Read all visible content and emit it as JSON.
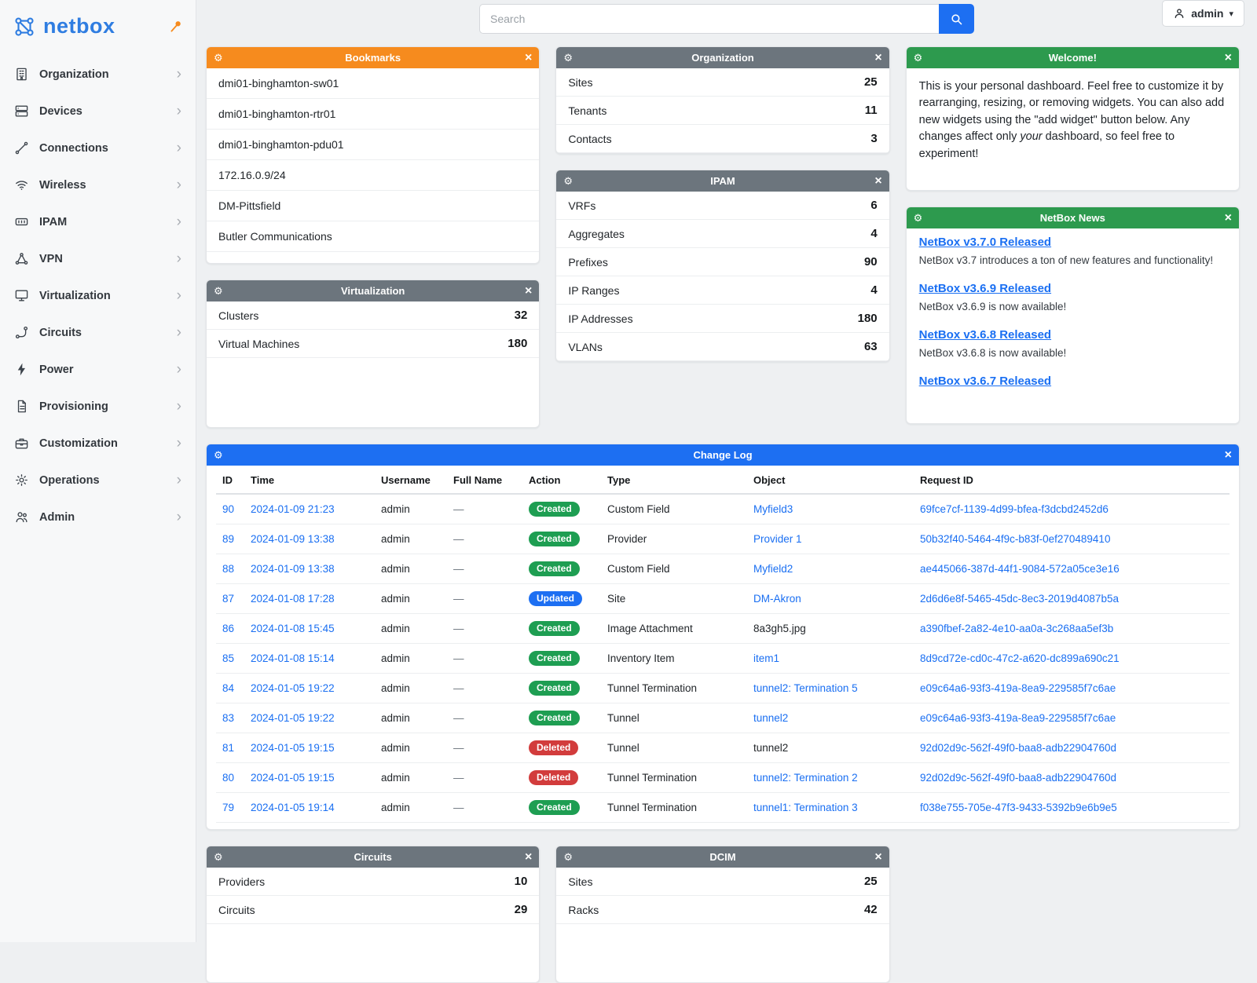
{
  "brand": {
    "name": "netbox"
  },
  "topbar": {
    "search_placeholder": "Search",
    "user": "admin"
  },
  "colors": {
    "link": "#1a6ff2",
    "header_orange": "#f68b1e",
    "header_gray": "#6c757d",
    "header_green": "#2d9a4e",
    "header_blue": "#1d6ff2",
    "badge_created": "#1e9e52",
    "badge_updated": "#1d6ff2",
    "badge_deleted": "#d23c3c"
  },
  "sidebar": {
    "items": [
      {
        "label": "Organization",
        "icon": "building-icon"
      },
      {
        "label": "Devices",
        "icon": "devices-icon"
      },
      {
        "label": "Connections",
        "icon": "connections-icon"
      },
      {
        "label": "Wireless",
        "icon": "wifi-icon"
      },
      {
        "label": "IPAM",
        "icon": "ipam-icon"
      },
      {
        "label": "VPN",
        "icon": "vpn-icon"
      },
      {
        "label": "Virtualization",
        "icon": "virtualization-icon"
      },
      {
        "label": "Circuits",
        "icon": "circuits-icon"
      },
      {
        "label": "Power",
        "icon": "power-icon"
      },
      {
        "label": "Provisioning",
        "icon": "provisioning-icon"
      },
      {
        "label": "Customization",
        "icon": "customization-icon"
      },
      {
        "label": "Operations",
        "icon": "operations-icon"
      },
      {
        "label": "Admin",
        "icon": "admin-icon"
      }
    ]
  },
  "widgets": {
    "bookmarks": {
      "title": "Bookmarks",
      "header_color": "#f68b1e",
      "items": [
        "dmi01-binghamton-sw01",
        "dmi01-binghamton-rtr01",
        "dmi01-binghamton-pdu01",
        "172.16.0.9/24",
        "DM-Pittsfield",
        "Butler Communications"
      ]
    },
    "organization": {
      "title": "Organization",
      "header_color": "#6c757d",
      "stats": [
        {
          "label": "Sites",
          "value": "25"
        },
        {
          "label": "Tenants",
          "value": "11"
        },
        {
          "label": "Contacts",
          "value": "3"
        }
      ]
    },
    "welcome": {
      "title": "Welcome!",
      "header_color": "#2d9a4e",
      "text_before": "This is your personal dashboard. Feel free to customize it by rearranging, resizing, or removing widgets. You can also add new widgets using the \"add widget\" button below. Any changes affect only ",
      "italic_word": "your",
      "text_after": " dashboard, so feel free to experiment!"
    },
    "virtualization": {
      "title": "Virtualization",
      "header_color": "#6c757d",
      "stats": [
        {
          "label": "Clusters",
          "value": "32"
        },
        {
          "label": "Virtual Machines",
          "value": "180"
        }
      ]
    },
    "ipam": {
      "title": "IPAM",
      "header_color": "#6c757d",
      "stats": [
        {
          "label": "VRFs",
          "value": "6"
        },
        {
          "label": "Aggregates",
          "value": "4"
        },
        {
          "label": "Prefixes",
          "value": "90"
        },
        {
          "label": "IP Ranges",
          "value": "4"
        },
        {
          "label": "IP Addresses",
          "value": "180"
        },
        {
          "label": "VLANs",
          "value": "63"
        }
      ]
    },
    "news": {
      "title": "NetBox News",
      "header_color": "#2d9a4e",
      "items": [
        {
          "headline": "NetBox v3.7.0 Released",
          "text": "NetBox v3.7 introduces a ton of new features and functionality!"
        },
        {
          "headline": "NetBox v3.6.9 Released",
          "text": "NetBox v3.6.9 is now available!"
        },
        {
          "headline": "NetBox v3.6.8 Released",
          "text": "NetBox v3.6.8 is now available!"
        },
        {
          "headline": "NetBox v3.6.7 Released",
          "text": ""
        }
      ]
    },
    "changelog": {
      "title": "Change Log",
      "header_color": "#1d6ff2",
      "columns": [
        "ID",
        "Time",
        "Username",
        "Full Name",
        "Action",
        "Type",
        "Object",
        "Request ID"
      ],
      "rows": [
        {
          "id": "90",
          "time": "2024-01-09 21:23",
          "username": "admin",
          "full_name": "—",
          "action": "Created",
          "action_type": "created",
          "type": "Custom Field",
          "object": "Myfield3",
          "object_is_link": true,
          "request_id": "69fce7cf-1139-4d99-bfea-f3dcbd2452d6"
        },
        {
          "id": "89",
          "time": "2024-01-09 13:38",
          "username": "admin",
          "full_name": "—",
          "action": "Created",
          "action_type": "created",
          "type": "Provider",
          "object": "Provider 1",
          "object_is_link": true,
          "request_id": "50b32f40-5464-4f9c-b83f-0ef270489410"
        },
        {
          "id": "88",
          "time": "2024-01-09 13:38",
          "username": "admin",
          "full_name": "—",
          "action": "Created",
          "action_type": "created",
          "type": "Custom Field",
          "object": "Myfield2",
          "object_is_link": true,
          "request_id": "ae445066-387d-44f1-9084-572a05ce3e16"
        },
        {
          "id": "87",
          "time": "2024-01-08 17:28",
          "username": "admin",
          "full_name": "—",
          "action": "Updated",
          "action_type": "updated",
          "type": "Site",
          "object": "DM-Akron",
          "object_is_link": true,
          "request_id": "2d6d6e8f-5465-45dc-8ec3-2019d4087b5a"
        },
        {
          "id": "86",
          "time": "2024-01-08 15:45",
          "username": "admin",
          "full_name": "—",
          "action": "Created",
          "action_type": "created",
          "type": "Image Attachment",
          "object": "8a3gh5.jpg",
          "object_is_link": false,
          "request_id": "a390fbef-2a82-4e10-aa0a-3c268aa5ef3b"
        },
        {
          "id": "85",
          "time": "2024-01-08 15:14",
          "username": "admin",
          "full_name": "—",
          "action": "Created",
          "action_type": "created",
          "type": "Inventory Item",
          "object": "item1",
          "object_is_link": true,
          "request_id": "8d9cd72e-cd0c-47c2-a620-dc899a690c21"
        },
        {
          "id": "84",
          "time": "2024-01-05 19:22",
          "username": "admin",
          "full_name": "—",
          "action": "Created",
          "action_type": "created",
          "type": "Tunnel Termination",
          "object": "tunnel2: Termination 5",
          "object_is_link": true,
          "request_id": "e09c64a6-93f3-419a-8ea9-229585f7c6ae"
        },
        {
          "id": "83",
          "time": "2024-01-05 19:22",
          "username": "admin",
          "full_name": "—",
          "action": "Created",
          "action_type": "created",
          "type": "Tunnel",
          "object": "tunnel2",
          "object_is_link": true,
          "request_id": "e09c64a6-93f3-419a-8ea9-229585f7c6ae"
        },
        {
          "id": "81",
          "time": "2024-01-05 19:15",
          "username": "admin",
          "full_name": "—",
          "action": "Deleted",
          "action_type": "deleted",
          "type": "Tunnel",
          "object": "tunnel2",
          "object_is_link": false,
          "request_id": "92d02d9c-562f-49f0-baa8-adb22904760d"
        },
        {
          "id": "80",
          "time": "2024-01-05 19:15",
          "username": "admin",
          "full_name": "—",
          "action": "Deleted",
          "action_type": "deleted",
          "type": "Tunnel Termination",
          "object": "tunnel2: Termination 2",
          "object_is_link": true,
          "request_id": "92d02d9c-562f-49f0-baa8-adb22904760d"
        },
        {
          "id": "79",
          "time": "2024-01-05 19:14",
          "username": "admin",
          "full_name": "—",
          "action": "Created",
          "action_type": "created",
          "type": "Tunnel Termination",
          "object": "tunnel1: Termination 3",
          "object_is_link": true,
          "request_id": "f038e755-705e-47f3-9433-5392b9e6b9e5"
        }
      ]
    },
    "circuits": {
      "title": "Circuits",
      "header_color": "#6c757d",
      "stats": [
        {
          "label": "Providers",
          "value": "10"
        },
        {
          "label": "Circuits",
          "value": "29"
        }
      ]
    },
    "dcim": {
      "title": "DCIM",
      "header_color": "#6c757d",
      "stats": [
        {
          "label": "Sites",
          "value": "25"
        },
        {
          "label": "Racks",
          "value": "42"
        }
      ]
    }
  }
}
